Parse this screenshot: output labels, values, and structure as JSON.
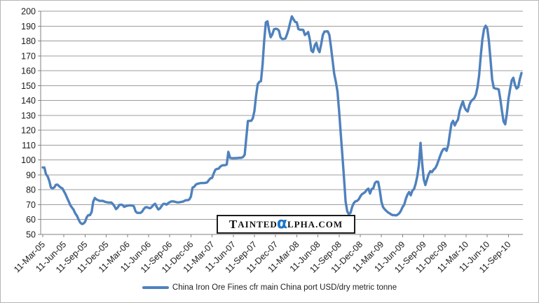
{
  "colors": {
    "line": "#4F81BD",
    "gridline": "#9C9C9C",
    "axis_line": "#808080",
    "tick_text": "#1A1A1A",
    "background": "#FFFFFF",
    "watermark_alpha": "#1B75C6",
    "watermark_text": "#111111"
  },
  "watermark": {
    "part1_big": "T",
    "part1_small": "AINTED",
    "alpha": "α",
    "part2_small": "LPHA.COM"
  },
  "legend": {
    "label": "China Iron Ore Fines cfr main China port USD/dry metric tonne"
  },
  "chart_data": {
    "type": "line",
    "title": "",
    "xlabel": "",
    "ylabel": "",
    "ylim": [
      50,
      200
    ],
    "y_tick_step": 10,
    "y_tick_labels": [
      "50",
      "60",
      "70",
      "80",
      "90",
      "100",
      "110",
      "120",
      "130",
      "140",
      "150",
      "160",
      "170",
      "180",
      "190",
      "200"
    ],
    "grid": true,
    "legend_position": "bottom",
    "x_unit": "weekly observations",
    "x_ticks_every_n_points": 13,
    "x_tick_labels": [
      "11-Mar-05",
      "11-Jun-05",
      "11-Sep-05",
      "11-Dec-05",
      "11-Mar-06",
      "11-Jun-06",
      "11-Sep-06",
      "11-Dec-06",
      "11-Mar-07",
      "11-Jun-07",
      "11-Sep-07",
      "11-Dec-07",
      "11-Mar-08",
      "11-Jun-08",
      "11-Sep-08",
      "11-Dec-08",
      "11-Mar-09",
      "11-Jun-09",
      "11-Sep-09",
      "11-Dec-09",
      "11-Mar-10",
      "11-Jun-10",
      "11-Sep-10"
    ],
    "series": [
      {
        "name": "China Iron Ore Fines cfr main China port USD/dry metric tonne",
        "color": "#4F81BD",
        "values": [
          95,
          95,
          90.5,
          89,
          86,
          81.5,
          81,
          81.5,
          83.3,
          83.5,
          82.5,
          81.5,
          81,
          79,
          77,
          74.5,
          72,
          69.5,
          68,
          66.5,
          64,
          62.5,
          60,
          58,
          57,
          57.3,
          58.5,
          61.5,
          63,
          63,
          65,
          72,
          74.5,
          73.5,
          73,
          72.5,
          72.5,
          72.5,
          72,
          71.7,
          71.5,
          71.3,
          71.5,
          70.5,
          69,
          67,
          68,
          69.8,
          70,
          69.8,
          68.5,
          69,
          69.3,
          69.5,
          69.5,
          69.4,
          68.8,
          65.5,
          64.5,
          64.5,
          64.5,
          65.3,
          67,
          68.2,
          68.3,
          67.8,
          67.6,
          68.5,
          69.9,
          70.6,
          68.5,
          66.8,
          67.5,
          69.1,
          70.5,
          70.6,
          70,
          71,
          71.7,
          72.2,
          72.2,
          72,
          71.7,
          71.5,
          71.6,
          71.8,
          72,
          72.5,
          73,
          73,
          73.5,
          75.5,
          81.5,
          82,
          83.5,
          84,
          84.3,
          84.5,
          84.5,
          84.5,
          84.7,
          85,
          86.5,
          87.7,
          88,
          91,
          93.5,
          94,
          94.2,
          95.5,
          96.3,
          96.5,
          96.5,
          97,
          105.5,
          101.5,
          101.3,
          101.2,
          101.3,
          101.3,
          101.4,
          101.5,
          101.5,
          102,
          103.5,
          115,
          126.2,
          126.3,
          126.3,
          128,
          133,
          143,
          151,
          152.5,
          153,
          164,
          180,
          192.5,
          193.2,
          187,
          182.5,
          184.5,
          187.8,
          188.2,
          188,
          187,
          182.5,
          181.3,
          181.4,
          181.6,
          184.5,
          188,
          192.5,
          196.5,
          194.5,
          192.8,
          192.5,
          188,
          187.5,
          187.6,
          187.4,
          184,
          184.8,
          186,
          181,
          173.5,
          172.5,
          177,
          178.8,
          174.5,
          172.5,
          178,
          184,
          186.3,
          186.4,
          186.5,
          184,
          176,
          167,
          158,
          152.5,
          146,
          133,
          118,
          103,
          88,
          72,
          65.5,
          63.6,
          64.5,
          68.5,
          71,
          72.2,
          72.5,
          73.5,
          75.5,
          77,
          77.7,
          78.5,
          80,
          80.8,
          77.5,
          80.5,
          81,
          84.5,
          85.5,
          85.3,
          79.5,
          72,
          68.3,
          66.9,
          65.8,
          64.8,
          64.2,
          63.4,
          63,
          63,
          62.8,
          63.3,
          64.3,
          66,
          68.5,
          70,
          74,
          76.8,
          78.5,
          76.3,
          79.5,
          80.5,
          84,
          89,
          96.5,
          111.5,
          98,
          87,
          83.2,
          87,
          90.5,
          92.5,
          91.8,
          93.5,
          94.5,
          96.5,
          99.5,
          102.5,
          105.5,
          107.3,
          107.6,
          106.2,
          110,
          117.5,
          124.5,
          126.3,
          123.2,
          125.5,
          127.1,
          133,
          136.5,
          139.5,
          135.5,
          133.5,
          132.6,
          137,
          139.5,
          140.5,
          141.5,
          144,
          149,
          157,
          170,
          181,
          188,
          190.2,
          188.5,
          180,
          167,
          154,
          148.5,
          148,
          147.8,
          147.5,
          141,
          133,
          126,
          124,
          131,
          141,
          147.5,
          153.5,
          155.3,
          150.5,
          148,
          149,
          154.5,
          158.5
        ]
      }
    ]
  }
}
